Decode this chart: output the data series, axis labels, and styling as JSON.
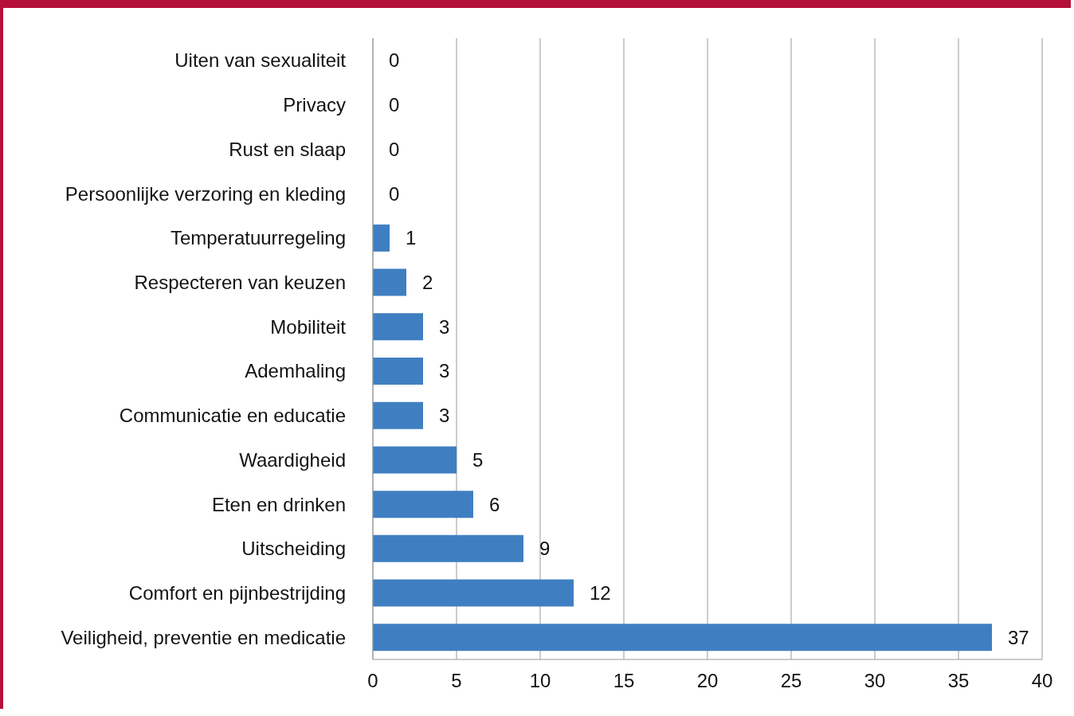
{
  "chart_data": {
    "type": "bar",
    "orientation": "horizontal",
    "categories": [
      "Uiten van sexualiteit",
      "Privacy",
      "Rust en slaap",
      "Persoonlijke verzoring en kleding",
      "Temperatuurregeling",
      "Respecteren van keuzen",
      "Mobiliteit",
      "Ademhaling",
      "Communicatie en educatie",
      "Waardigheid",
      "Eten en drinken",
      "Uitscheiding",
      "Comfort en pijnbestrijding",
      "Veiligheid, preventie en medicatie"
    ],
    "values": [
      0,
      0,
      0,
      0,
      1,
      2,
      3,
      3,
      3,
      5,
      6,
      9,
      12,
      37
    ],
    "color": "#3f7fc1",
    "xlim": [
      0,
      40
    ],
    "xticks": [
      0,
      5,
      10,
      15,
      20,
      25,
      30,
      35,
      40
    ],
    "grid": "x",
    "data_labels": true
  }
}
